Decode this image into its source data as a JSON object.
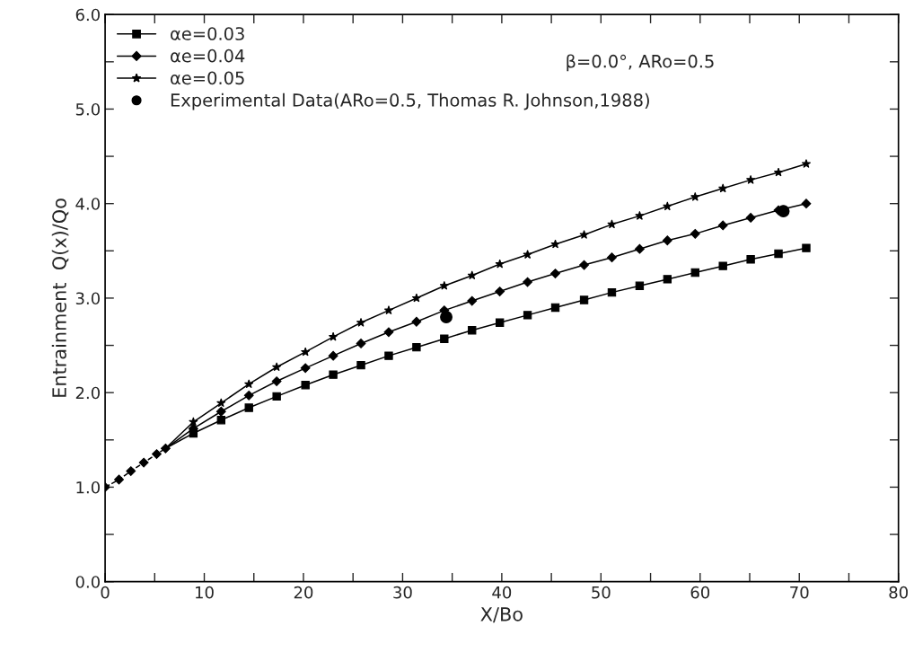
{
  "chart_data": {
    "type": "line",
    "xlabel": "X/Bo",
    "ylabel": "Entrainment  Q(x)/Qo",
    "annotations": [
      "β=0.0°, ARo=0.5"
    ],
    "xlim": [
      0,
      80
    ],
    "ylim": [
      0.0,
      6.0
    ],
    "xticks": [
      0,
      {
        "value": 5,
        "label": null
      },
      10,
      {
        "value": 15,
        "label": null
      },
      20,
      {
        "value": 25,
        "label": null
      },
      30,
      {
        "value": 35,
        "label": null
      },
      40,
      {
        "value": 45,
        "label": null
      },
      50,
      {
        "value": 55,
        "label": null
      },
      60,
      {
        "value": 65,
        "label": null
      },
      70,
      {
        "value": 75,
        "label": null
      },
      80
    ],
    "yticks": [
      {
        "value": 0,
        "label": "0.0"
      },
      {
        "value": 0.5,
        "label": null
      },
      {
        "value": 1,
        "label": "1.0"
      },
      {
        "value": 1.5,
        "label": null
      },
      {
        "value": 2,
        "label": "2.0"
      },
      {
        "value": 2.5,
        "label": null
      },
      {
        "value": 3,
        "label": "3.0"
      },
      {
        "value": 3.5,
        "label": null
      },
      {
        "value": 4,
        "label": "4.0"
      },
      {
        "value": 4.5,
        "label": null
      },
      {
        "value": 5,
        "label": "5.0"
      },
      {
        "value": 5.5,
        "label": null
      },
      {
        "value": 6,
        "label": "6.0"
      }
    ],
    "grid": false,
    "legend": "top left",
    "series": [
      {
        "color": "#000000",
        "marker": "diamond",
        "line_style": "dashed",
        "x": [
          0,
          1.4,
          2.6,
          3.9,
          5.2,
          6.1
        ],
        "values": [
          1.0,
          1.08,
          1.17,
          1.26,
          1.35,
          1.41
        ]
      },
      {
        "name": "αe=0.03",
        "color": "#000000",
        "marker": "square",
        "line_style": "solid",
        "x": [
          6.1,
          8.9,
          11.7,
          14.5,
          17.3,
          20.2,
          23.0,
          25.8,
          28.6,
          31.4,
          34.2,
          37.0,
          39.8,
          42.6,
          45.4,
          48.3,
          51.1,
          53.9,
          56.7,
          59.5,
          62.3,
          65.1,
          67.9,
          70.7
        ],
        "values": [
          1.41,
          1.57,
          1.71,
          1.84,
          1.96,
          2.08,
          2.19,
          2.29,
          2.39,
          2.48,
          2.57,
          2.66,
          2.74,
          2.82,
          2.9,
          2.98,
          3.06,
          3.13,
          3.2,
          3.27,
          3.34,
          3.41,
          3.47,
          3.53
        ]
      },
      {
        "name": "αe=0.04",
        "color": "#000000",
        "marker": "diamond",
        "line_style": "solid",
        "x": [
          6.1,
          8.9,
          11.7,
          14.5,
          17.3,
          20.2,
          23.0,
          25.8,
          28.6,
          31.4,
          34.2,
          37.0,
          39.8,
          42.6,
          45.4,
          48.3,
          51.1,
          53.9,
          56.7,
          59.5,
          62.3,
          65.1,
          67.9,
          70.7
        ],
        "values": [
          1.41,
          1.62,
          1.8,
          1.97,
          2.12,
          2.26,
          2.39,
          2.52,
          2.64,
          2.75,
          2.87,
          2.97,
          3.07,
          3.17,
          3.26,
          3.35,
          3.43,
          3.52,
          3.61,
          3.68,
          3.77,
          3.85,
          3.93,
          4.0
        ]
      },
      {
        "name": "αe=0.05",
        "color": "#000000",
        "marker": "star",
        "line_style": "solid",
        "x": [
          6.1,
          8.9,
          11.7,
          14.5,
          17.3,
          20.2,
          23.0,
          25.8,
          28.6,
          31.4,
          34.2,
          37.0,
          39.8,
          42.6,
          45.4,
          48.3,
          51.1,
          53.9,
          56.7,
          59.5,
          62.3,
          65.1,
          67.9,
          70.7
        ],
        "values": [
          1.41,
          1.69,
          1.89,
          2.09,
          2.27,
          2.43,
          2.59,
          2.74,
          2.87,
          3.0,
          3.13,
          3.24,
          3.36,
          3.46,
          3.57,
          3.67,
          3.78,
          3.87,
          3.97,
          4.07,
          4.16,
          4.25,
          4.33,
          4.42
        ]
      },
      {
        "name": "Experimental Data(ARo=0.5, Thomas R. Johnson,1988)",
        "type": "scatter",
        "color": "#000000",
        "marker": "circle",
        "x": [
          34.4,
          68.4
        ],
        "values": [
          2.8,
          3.92
        ]
      }
    ]
  }
}
